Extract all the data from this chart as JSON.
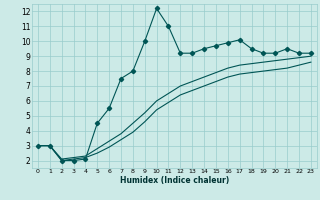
{
  "xlabel": "Humidex (Indice chaleur)",
  "bg_color": "#cceae7",
  "grid_color": "#99cccc",
  "line_color": "#005555",
  "xlim": [
    -0.5,
    23.5
  ],
  "ylim": [
    1.5,
    12.5
  ],
  "xticks": [
    0,
    1,
    2,
    3,
    4,
    5,
    6,
    7,
    8,
    9,
    10,
    11,
    12,
    13,
    14,
    15,
    16,
    17,
    18,
    19,
    20,
    21,
    22,
    23
  ],
  "yticks": [
    2,
    3,
    4,
    5,
    6,
    7,
    8,
    9,
    10,
    11,
    12
  ],
  "line1_x": [
    0,
    1,
    2,
    3,
    4,
    5,
    6,
    7,
    8,
    9,
    10,
    11,
    12,
    13,
    14,
    15,
    16,
    17,
    18,
    19,
    20,
    21,
    22,
    23
  ],
  "line1_y": [
    3.0,
    3.0,
    2.0,
    2.0,
    2.1,
    4.5,
    5.5,
    7.5,
    8.0,
    10.0,
    12.2,
    11.0,
    9.2,
    9.2,
    9.5,
    9.7,
    9.9,
    10.1,
    9.5,
    9.2,
    9.2,
    9.5,
    9.2,
    9.2
  ],
  "line2_x": [
    0,
    1,
    2,
    3,
    4,
    5,
    6,
    7,
    8,
    9,
    10,
    11,
    12,
    13,
    14,
    15,
    16,
    17,
    18,
    19,
    20,
    21,
    22,
    23
  ],
  "line2_y": [
    3.0,
    3.0,
    2.1,
    2.2,
    2.3,
    2.8,
    3.3,
    3.8,
    4.5,
    5.2,
    6.0,
    6.5,
    7.0,
    7.3,
    7.6,
    7.9,
    8.2,
    8.4,
    8.5,
    8.6,
    8.7,
    8.8,
    8.9,
    9.0
  ],
  "line3_x": [
    0,
    1,
    2,
    3,
    4,
    5,
    6,
    7,
    8,
    9,
    10,
    11,
    12,
    13,
    14,
    15,
    16,
    17,
    18,
    19,
    20,
    21,
    22,
    23
  ],
  "line3_y": [
    3.0,
    3.0,
    2.0,
    2.1,
    2.2,
    2.5,
    2.9,
    3.4,
    3.9,
    4.6,
    5.4,
    5.9,
    6.4,
    6.7,
    7.0,
    7.3,
    7.6,
    7.8,
    7.9,
    8.0,
    8.1,
    8.2,
    8.4,
    8.6
  ]
}
